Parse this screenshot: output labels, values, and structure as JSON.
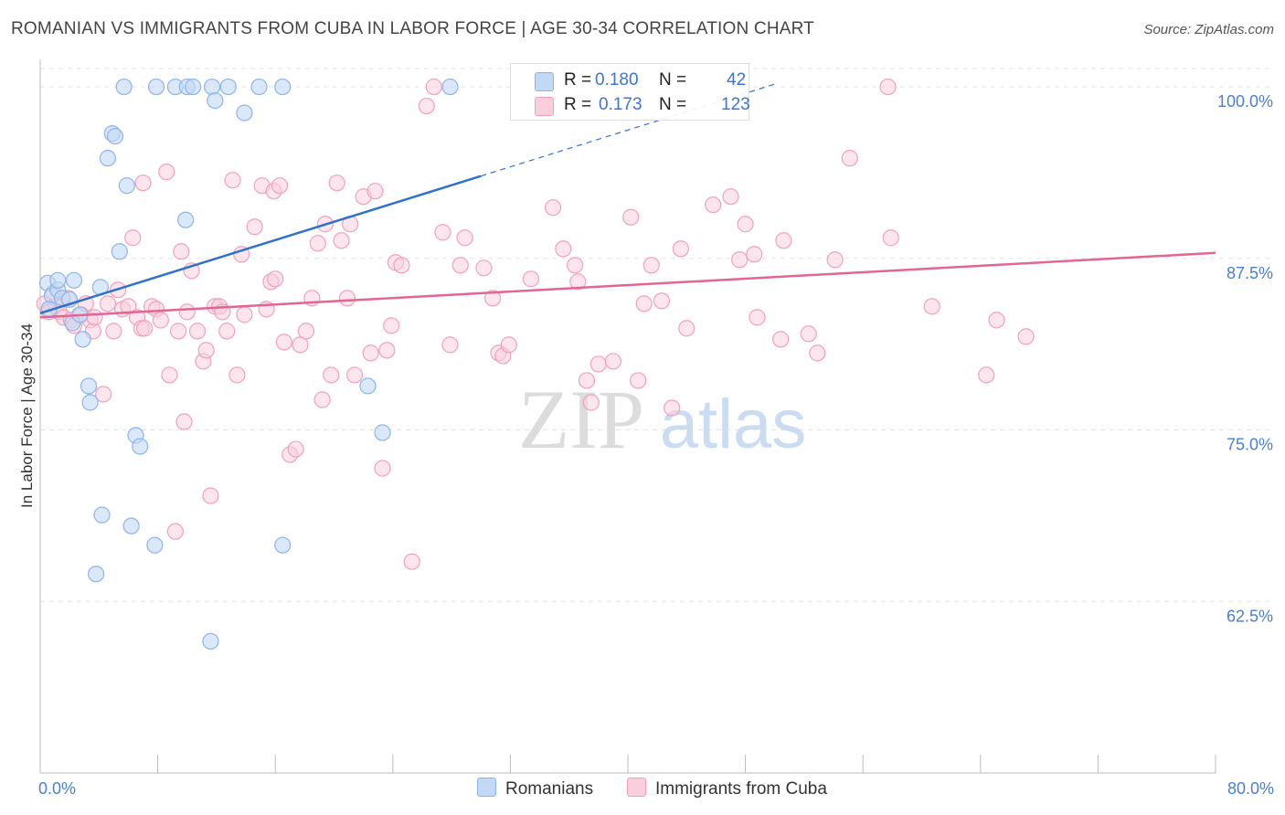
{
  "title": "ROMANIAN VS IMMIGRANTS FROM CUBA IN LABOR FORCE | AGE 30-34 CORRELATION CHART",
  "source": "Source: ZipAtlas.com",
  "watermark": {
    "zip": "ZIP",
    "atlas": "atlas"
  },
  "chart_data": {
    "type": "scatter",
    "xlabel": "",
    "ylabel": "In Labor Force | Age 30-34",
    "xlim": [
      0,
      80
    ],
    "ylim": [
      50,
      102
    ],
    "x_tick_labels": {
      "min": "0.0%",
      "max": "80.0%"
    },
    "y_ticks": [
      62.5,
      75.0,
      87.5,
      100.0
    ],
    "y_tick_labels": [
      "62.5%",
      "75.0%",
      "87.5%",
      "100.0%"
    ],
    "grid": true,
    "legend_position": "top-center",
    "colors": {
      "romanians": "#8ab4ec",
      "romanians_fill": "#c3d8f5",
      "romanians_line": "#2f72cc",
      "cuba": "#f0a0bd",
      "cuba_fill": "#f9cfdc",
      "cuba_line": "#e26596",
      "axis_text": "#4a7fd0",
      "grid": "#e3e3e3"
    },
    "stats": [
      {
        "series": "Romanians",
        "r_label": "R =",
        "r": "0.180",
        "n_label": "N =",
        "n": "42"
      },
      {
        "series": "Immigrants from Cuba",
        "r_label": "R =",
        "r": "0.173",
        "n_label": "N =",
        "n": "123"
      }
    ],
    "series": [
      {
        "name": "Romanians",
        "trend": {
          "x": [
            0,
            30
          ],
          "y": [
            83.5,
            93.5
          ],
          "dashed_to": {
            "x": 50,
            "y": 100.2
          }
        },
        "points": [
          [
            0.5,
            85.7
          ],
          [
            0.8,
            84.8
          ],
          [
            1.2,
            85.2
          ],
          [
            1.2,
            85.9
          ],
          [
            1.5,
            84.6
          ],
          [
            0.6,
            83.8
          ],
          [
            2.0,
            84.5
          ],
          [
            2.2,
            82.8
          ],
          [
            2.3,
            85.9
          ],
          [
            2.7,
            83.4
          ],
          [
            2.9,
            81.6
          ],
          [
            3.3,
            78.2
          ],
          [
            3.4,
            77.0
          ],
          [
            4.1,
            85.4
          ],
          [
            4.6,
            94.8
          ],
          [
            4.9,
            96.6
          ],
          [
            5.1,
            96.4
          ],
          [
            5.4,
            88.0
          ],
          [
            5.7,
            100.0
          ],
          [
            5.9,
            92.8
          ],
          [
            6.2,
            68.0
          ],
          [
            6.5,
            74.6
          ],
          [
            6.8,
            73.8
          ],
          [
            7.8,
            66.6
          ],
          [
            7.9,
            100.0
          ],
          [
            9.2,
            100.0
          ],
          [
            9.9,
            90.3
          ],
          [
            10.0,
            100.0
          ],
          [
            10.4,
            100.0
          ],
          [
            11.7,
            100.0
          ],
          [
            11.9,
            99.0
          ],
          [
            12.8,
            100.0
          ],
          [
            13.9,
            98.1
          ],
          [
            14.9,
            100.0
          ],
          [
            16.5,
            100.0
          ],
          [
            16.5,
            66.6
          ],
          [
            22.3,
            78.2
          ],
          [
            23.3,
            74.8
          ],
          [
            27.9,
            100.0
          ],
          [
            11.6,
            59.6
          ],
          [
            3.8,
            64.5
          ],
          [
            4.2,
            68.8
          ]
        ]
      },
      {
        "name": "Immigrants from Cuba",
        "trend": {
          "x": [
            0,
            80
          ],
          "y": [
            83.2,
            87.9
          ]
        },
        "points": [
          [
            0.3,
            84.2
          ],
          [
            0.6,
            83.6
          ],
          [
            0.9,
            85.0
          ],
          [
            1.1,
            84.0
          ],
          [
            1.3,
            83.6
          ],
          [
            1.6,
            83.2
          ],
          [
            1.9,
            84.6
          ],
          [
            2.1,
            83.0
          ],
          [
            2.3,
            82.6
          ],
          [
            2.8,
            83.4
          ],
          [
            3.1,
            84.2
          ],
          [
            3.4,
            83.0
          ],
          [
            3.6,
            82.2
          ],
          [
            3.7,
            83.2
          ],
          [
            4.3,
            77.6
          ],
          [
            4.6,
            84.2
          ],
          [
            5.0,
            82.2
          ],
          [
            5.3,
            85.2
          ],
          [
            5.6,
            83.8
          ],
          [
            6.0,
            84.0
          ],
          [
            6.3,
            89.0
          ],
          [
            6.6,
            83.2
          ],
          [
            6.9,
            82.4
          ],
          [
            7.1,
            82.4
          ],
          [
            7.6,
            84.0
          ],
          [
            7.9,
            83.8
          ],
          [
            8.2,
            83.0
          ],
          [
            8.6,
            93.8
          ],
          [
            8.8,
            79.0
          ],
          [
            9.2,
            67.6
          ],
          [
            9.4,
            82.2
          ],
          [
            9.8,
            75.6
          ],
          [
            10.0,
            83.6
          ],
          [
            10.3,
            86.6
          ],
          [
            10.7,
            82.2
          ],
          [
            11.1,
            80.0
          ],
          [
            11.3,
            80.8
          ],
          [
            11.6,
            70.2
          ],
          [
            11.9,
            84.0
          ],
          [
            12.2,
            84.0
          ],
          [
            12.4,
            83.6
          ],
          [
            12.7,
            82.2
          ],
          [
            13.1,
            93.2
          ],
          [
            13.4,
            79.0
          ],
          [
            13.7,
            87.8
          ],
          [
            13.9,
            83.4
          ],
          [
            14.6,
            89.8
          ],
          [
            15.1,
            92.8
          ],
          [
            15.4,
            83.8
          ],
          [
            15.7,
            85.8
          ],
          [
            15.9,
            92.4
          ],
          [
            16.3,
            92.8
          ],
          [
            16.6,
            81.4
          ],
          [
            17.0,
            73.2
          ],
          [
            17.4,
            73.6
          ],
          [
            17.7,
            81.2
          ],
          [
            18.1,
            82.2
          ],
          [
            18.5,
            84.6
          ],
          [
            18.9,
            88.6
          ],
          [
            19.2,
            77.2
          ],
          [
            19.4,
            90.0
          ],
          [
            19.8,
            79.0
          ],
          [
            20.2,
            93.0
          ],
          [
            20.5,
            88.8
          ],
          [
            20.9,
            84.6
          ],
          [
            21.1,
            90.0
          ],
          [
            21.4,
            79.0
          ],
          [
            22.0,
            92.0
          ],
          [
            22.5,
            80.6
          ],
          [
            22.8,
            92.4
          ],
          [
            23.3,
            72.2
          ],
          [
            23.6,
            80.8
          ],
          [
            23.9,
            82.6
          ],
          [
            24.2,
            87.2
          ],
          [
            24.6,
            87.0
          ],
          [
            25.3,
            65.4
          ],
          [
            26.3,
            98.6
          ],
          [
            26.8,
            100.0
          ],
          [
            27.4,
            89.4
          ],
          [
            27.9,
            81.2
          ],
          [
            28.6,
            87.0
          ],
          [
            28.9,
            89.0
          ],
          [
            30.2,
            86.8
          ],
          [
            30.8,
            84.6
          ],
          [
            31.2,
            80.6
          ],
          [
            31.5,
            80.4
          ],
          [
            31.9,
            81.2
          ],
          [
            33.4,
            86.0
          ],
          [
            34.9,
            91.2
          ],
          [
            35.6,
            88.2
          ],
          [
            36.4,
            87.0
          ],
          [
            36.6,
            85.8
          ],
          [
            37.2,
            78.6
          ],
          [
            37.5,
            77.0
          ],
          [
            38.0,
            79.8
          ],
          [
            39.0,
            80.0
          ],
          [
            40.2,
            90.5
          ],
          [
            40.7,
            78.6
          ],
          [
            41.1,
            84.2
          ],
          [
            41.6,
            87.0
          ],
          [
            42.3,
            84.4
          ],
          [
            43.0,
            76.6
          ],
          [
            43.6,
            88.2
          ],
          [
            44.0,
            82.4
          ],
          [
            45.8,
            91.4
          ],
          [
            47.0,
            92.0
          ],
          [
            47.6,
            87.4
          ],
          [
            48.0,
            90.0
          ],
          [
            48.6,
            87.8
          ],
          [
            48.8,
            83.2
          ],
          [
            50.4,
            81.6
          ],
          [
            50.6,
            88.8
          ],
          [
            52.3,
            82.0
          ],
          [
            52.9,
            80.6
          ],
          [
            54.1,
            87.4
          ],
          [
            55.1,
            94.8
          ],
          [
            57.7,
            100.0
          ],
          [
            57.9,
            89.0
          ],
          [
            60.7,
            84.0
          ],
          [
            64.4,
            79.0
          ],
          [
            65.1,
            83.0
          ],
          [
            67.1,
            81.8
          ],
          [
            7.0,
            93.0
          ],
          [
            9.6,
            88.0
          ],
          [
            16.0,
            86.0
          ]
        ]
      }
    ]
  },
  "legend": [
    {
      "label": "Romanians"
    },
    {
      "label": "Immigrants from Cuba"
    }
  ]
}
